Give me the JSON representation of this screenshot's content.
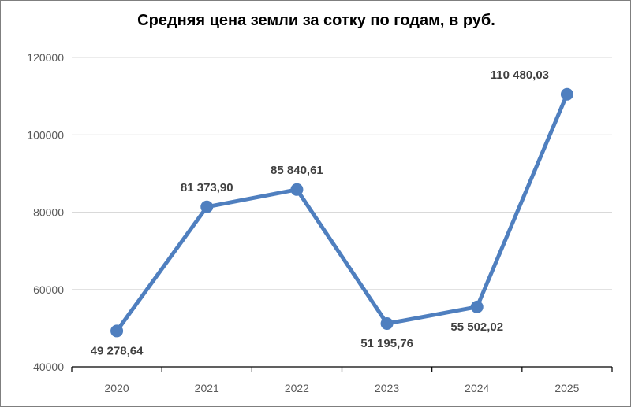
{
  "chart_data": {
    "type": "line",
    "title": "Средняя цена земли за сотку по годам, в руб.",
    "xlabel": "",
    "ylabel": "",
    "categories": [
      "2020",
      "2021",
      "2022",
      "2023",
      "2024",
      "2025"
    ],
    "series": [
      {
        "values": [
          49278.64,
          81373.9,
          85840.61,
          51195.76,
          55502.02,
          110480.03
        ]
      }
    ],
    "data_labels": [
      "49 278,64",
      "81 373,90",
      "85 840,61",
      "51 195,76",
      "55 502,02",
      "110 480,03"
    ],
    "y_ticks": [
      "40000",
      "60000",
      "80000",
      "100000",
      "120000"
    ],
    "ylim": [
      40000,
      120000
    ],
    "grid": "horizontal",
    "legend": "none",
    "line_color": "#4F7FBF"
  }
}
